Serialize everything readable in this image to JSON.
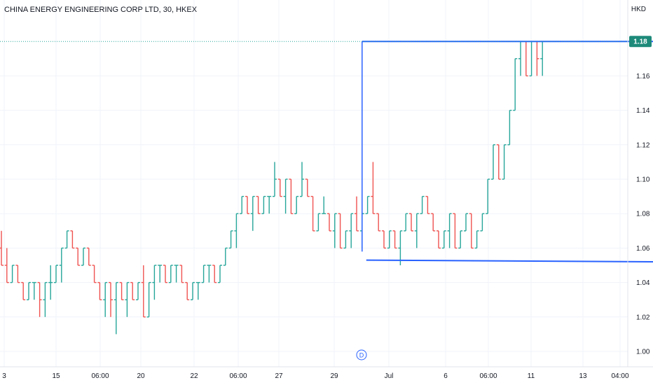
{
  "header": {
    "title": "CHINA ENERGY ENGINEERING CORP LTD, 30, HKEX",
    "currency": "HKD"
  },
  "colors": {
    "up": "#26a69a",
    "down": "#ef5350",
    "drawing": "#2962ff",
    "price_tag": "#1e8a7a",
    "grid": "#f0f3fa"
  },
  "chart_data": {
    "type": "ohlc",
    "title": "CHINA ENERGY ENGINEERING CORP LTD, 30, HKEX",
    "y_unit": "HKD",
    "ylim": [
      0.99,
      1.19
    ],
    "y_ticks": [
      "1.16",
      "1.14",
      "1.12",
      "1.10",
      "1.08",
      "1.06",
      "1.04",
      "1.02",
      "1.00"
    ],
    "x_ticks": [
      "3",
      "15",
      "06:00",
      "20",
      "22",
      "06:00",
      "27",
      "29",
      "Jul",
      "6",
      "06:00",
      "11",
      "13",
      "04:00"
    ],
    "last_price": "1.18",
    "event_marker": "D",
    "grid": true,
    "series": [
      {
        "values": [
          [
            1.06,
            1.07,
            1.05,
            1.05
          ],
          [
            1.05,
            1.06,
            1.04,
            1.04
          ],
          [
            1.04,
            1.05,
            1.04,
            1.05
          ],
          [
            1.05,
            1.05,
            1.04,
            1.04
          ],
          [
            1.04,
            1.04,
            1.03,
            1.03
          ],
          [
            1.03,
            1.04,
            1.03,
            1.04
          ],
          [
            1.04,
            1.04,
            1.03,
            1.04
          ],
          [
            1.04,
            1.04,
            1.02,
            1.03
          ],
          [
            1.03,
            1.04,
            1.02,
            1.04
          ],
          [
            1.04,
            1.05,
            1.03,
            1.04
          ],
          [
            1.04,
            1.05,
            1.04,
            1.05
          ],
          [
            1.05,
            1.06,
            1.04,
            1.06
          ],
          [
            1.06,
            1.07,
            1.06,
            1.07
          ],
          [
            1.07,
            1.07,
            1.06,
            1.06
          ],
          [
            1.06,
            1.06,
            1.05,
            1.05
          ],
          [
            1.05,
            1.06,
            1.05,
            1.06
          ],
          [
            1.06,
            1.06,
            1.05,
            1.05
          ],
          [
            1.05,
            1.05,
            1.04,
            1.04
          ],
          [
            1.04,
            1.04,
            1.03,
            1.03
          ],
          [
            1.03,
            1.04,
            1.02,
            1.04
          ],
          [
            1.04,
            1.04,
            1.02,
            1.03
          ],
          [
            1.03,
            1.04,
            1.01,
            1.04
          ],
          [
            1.04,
            1.04,
            1.03,
            1.03
          ],
          [
            1.03,
            1.04,
            1.02,
            1.04
          ],
          [
            1.04,
            1.04,
            1.03,
            1.03
          ],
          [
            1.03,
            1.04,
            1.03,
            1.04
          ],
          [
            1.04,
            1.05,
            1.02,
            1.02
          ],
          [
            1.02,
            1.04,
            1.02,
            1.04
          ],
          [
            1.04,
            1.05,
            1.03,
            1.05
          ],
          [
            1.05,
            1.05,
            1.04,
            1.05
          ],
          [
            1.05,
            1.05,
            1.04,
            1.04
          ],
          [
            1.04,
            1.05,
            1.04,
            1.05
          ],
          [
            1.05,
            1.05,
            1.04,
            1.05
          ],
          [
            1.05,
            1.05,
            1.04,
            1.04
          ],
          [
            1.04,
            1.04,
            1.03,
            1.03
          ],
          [
            1.03,
            1.04,
            1.03,
            1.04
          ],
          [
            1.04,
            1.04,
            1.03,
            1.04
          ],
          [
            1.04,
            1.05,
            1.04,
            1.05
          ],
          [
            1.05,
            1.05,
            1.04,
            1.05
          ],
          [
            1.05,
            1.05,
            1.04,
            1.04
          ],
          [
            1.04,
            1.05,
            1.04,
            1.05
          ],
          [
            1.05,
            1.06,
            1.05,
            1.06
          ],
          [
            1.06,
            1.07,
            1.06,
            1.07
          ],
          [
            1.07,
            1.08,
            1.06,
            1.08
          ],
          [
            1.08,
            1.09,
            1.08,
            1.09
          ],
          [
            1.09,
            1.09,
            1.08,
            1.08
          ],
          [
            1.08,
            1.09,
            1.07,
            1.09
          ],
          [
            1.09,
            1.09,
            1.08,
            1.08
          ],
          [
            1.08,
            1.09,
            1.08,
            1.09
          ],
          [
            1.09,
            1.09,
            1.08,
            1.09
          ],
          [
            1.09,
            1.11,
            1.09,
            1.1
          ],
          [
            1.1,
            1.1,
            1.09,
            1.09
          ],
          [
            1.09,
            1.1,
            1.08,
            1.1
          ],
          [
            1.1,
            1.1,
            1.08,
            1.08
          ],
          [
            1.08,
            1.09,
            1.08,
            1.09
          ],
          [
            1.09,
            1.11,
            1.09,
            1.1
          ],
          [
            1.1,
            1.1,
            1.09,
            1.09
          ],
          [
            1.09,
            1.09,
            1.07,
            1.07
          ],
          [
            1.07,
            1.08,
            1.07,
            1.08
          ],
          [
            1.08,
            1.09,
            1.08,
            1.08
          ],
          [
            1.08,
            1.08,
            1.07,
            1.07
          ],
          [
            1.07,
            1.08,
            1.06,
            1.08
          ],
          [
            1.08,
            1.08,
            1.06,
            1.06
          ],
          [
            1.06,
            1.07,
            1.06,
            1.07
          ],
          [
            1.07,
            1.08,
            1.06,
            1.08
          ],
          [
            1.08,
            1.09,
            1.07,
            1.07
          ],
          [
            1.07,
            1.08,
            1.06,
            1.08
          ],
          [
            1.08,
            1.09,
            1.08,
            1.09
          ],
          [
            1.09,
            1.11,
            1.08,
            1.08
          ],
          [
            1.08,
            1.08,
            1.07,
            1.07
          ],
          [
            1.07,
            1.07,
            1.06,
            1.06
          ],
          [
            1.06,
            1.07,
            1.06,
            1.07
          ],
          [
            1.07,
            1.07,
            1.06,
            1.06
          ],
          [
            1.06,
            1.07,
            1.05,
            1.07
          ],
          [
            1.07,
            1.08,
            1.07,
            1.08
          ],
          [
            1.08,
            1.08,
            1.07,
            1.07
          ],
          [
            1.07,
            1.08,
            1.06,
            1.08
          ],
          [
            1.08,
            1.09,
            1.08,
            1.09
          ],
          [
            1.09,
            1.09,
            1.08,
            1.08
          ],
          [
            1.08,
            1.08,
            1.07,
            1.07
          ],
          [
            1.07,
            1.07,
            1.06,
            1.06
          ],
          [
            1.06,
            1.07,
            1.06,
            1.07
          ],
          [
            1.07,
            1.08,
            1.06,
            1.08
          ],
          [
            1.08,
            1.08,
            1.06,
            1.06
          ],
          [
            1.06,
            1.07,
            1.06,
            1.07
          ],
          [
            1.07,
            1.08,
            1.07,
            1.08
          ],
          [
            1.08,
            1.08,
            1.06,
            1.06
          ],
          [
            1.06,
            1.07,
            1.06,
            1.07
          ],
          [
            1.07,
            1.08,
            1.07,
            1.08
          ],
          [
            1.08,
            1.1,
            1.08,
            1.1
          ],
          [
            1.1,
            1.12,
            1.1,
            1.12
          ],
          [
            1.12,
            1.12,
            1.1,
            1.1
          ],
          [
            1.1,
            1.12,
            1.1,
            1.12
          ],
          [
            1.12,
            1.14,
            1.12,
            1.14
          ],
          [
            1.14,
            1.17,
            1.14,
            1.17
          ],
          [
            1.17,
            1.18,
            1.16,
            1.18
          ],
          [
            1.18,
            1.18,
            1.16,
            1.16
          ],
          [
            1.16,
            1.18,
            1.16,
            1.18
          ],
          [
            1.18,
            1.18,
            1.16,
            1.17
          ],
          [
            1.17,
            1.18,
            1.16,
            1.18
          ]
        ]
      }
    ],
    "drawings": [
      {
        "type": "rectangle",
        "start_index": 66,
        "end_index": 120,
        "top": 1.18,
        "bottom": 1.058
      },
      {
        "type": "trendline",
        "start_index": 66,
        "end_index": 120,
        "start_value": 1.053,
        "end_value": 1.052
      }
    ]
  }
}
